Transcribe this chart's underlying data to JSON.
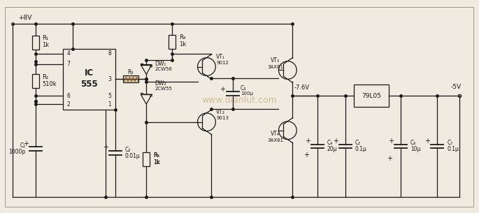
{
  "bg_color": "#f0ebe0",
  "line_color": "#1a1a1a",
  "text_color": "#1a1a1a",
  "watermark_color": "#c8a070",
  "watermark_text": "www.dianlut.com",
  "supply_voltage": "+8V",
  "output_voltage": "-5V",
  "mid_voltage": "-7.6V",
  "regulator": "79L05"
}
